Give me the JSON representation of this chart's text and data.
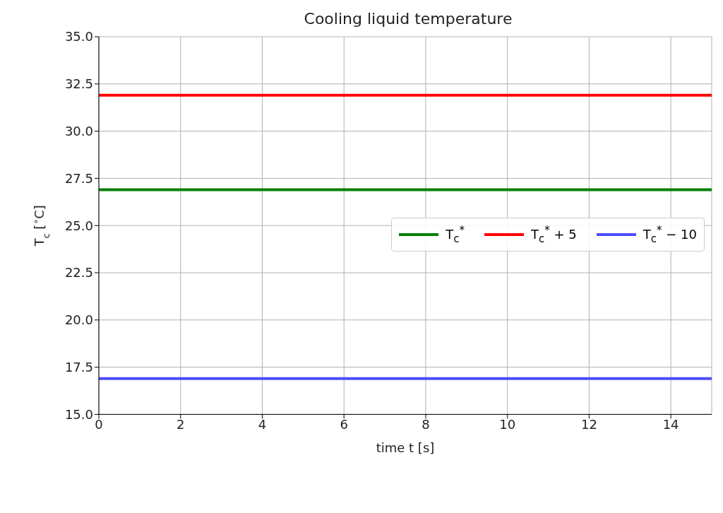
{
  "chart_data": {
    "type": "line",
    "title": "Cooling liquid temperature",
    "xlabel": "time t [s]",
    "ylabel": "T$_{c}$ [$^{∘}$C]",
    "x": [
      0,
      15
    ],
    "series": [
      {
        "name": "T$_{c}$$^{*}$",
        "color": "#008000",
        "values": [
          26.9,
          26.9
        ]
      },
      {
        "name": "T$_{c}$$^{*}$ + 5",
        "color": "#ff0000",
        "values": [
          31.9,
          31.9
        ]
      },
      {
        "name": "T$_{c}$$^{*}$ − 10",
        "color": "#4d4dff",
        "values": [
          16.9,
          16.9
        ]
      }
    ],
    "xlim": [
      0,
      15
    ],
    "xticks": [
      0,
      2,
      4,
      6,
      8,
      10,
      12,
      14
    ],
    "ylim": [
      15,
      35
    ],
    "yticks": [
      {
        "value": 15,
        "label": "15.0"
      },
      {
        "value": 17.5,
        "label": "17.5"
      },
      {
        "value": 20,
        "label": "20.0"
      },
      {
        "value": 22.5,
        "label": "22.5"
      },
      {
        "value": 25,
        "label": "25.0"
      },
      {
        "value": 27.5,
        "label": "27.5"
      },
      {
        "value": 30,
        "label": "30.0"
      },
      {
        "value": 32.5,
        "label": "32.5"
      },
      {
        "value": 35,
        "label": "35.0"
      }
    ],
    "grid": true,
    "legend": "right",
    "marker": "none",
    "line_style": "solid"
  }
}
